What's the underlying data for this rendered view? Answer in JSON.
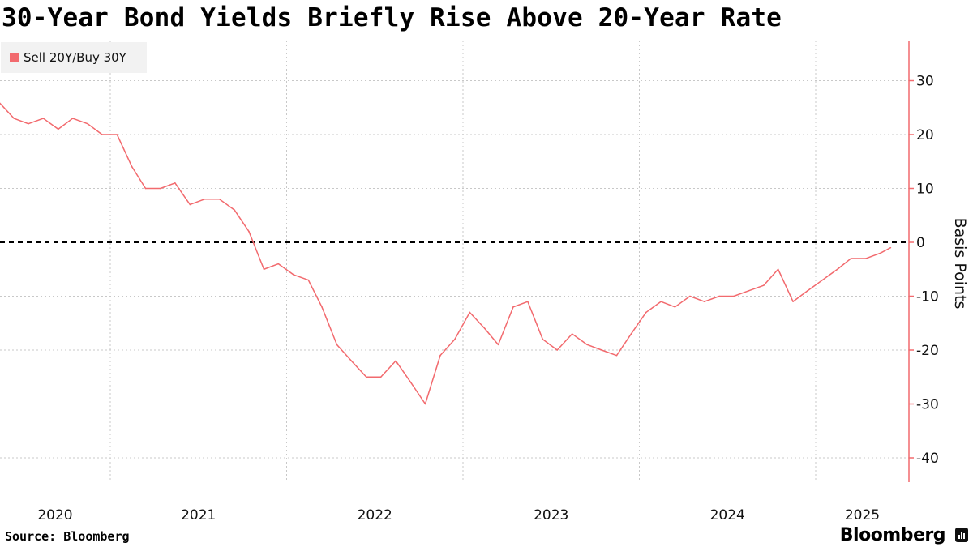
{
  "title": "30-Year Bond Yields Briefly Rise Above 20-Year Rate",
  "source": "Source: Bloomberg",
  "brand": "Bloomberg",
  "colors": {
    "series": "#f26a6e",
    "axis": "#f26a6e",
    "zero_line": "#000000",
    "grid": "#c8c8c8",
    "legend_bg": "#f2f2f2"
  },
  "chart_data": {
    "type": "line",
    "title": "30-Year Bond Yields Briefly Rise Above 20-Year Rate",
    "ylabel": "Basis Points",
    "ylim": [
      -45,
      37
    ],
    "yticks": [
      30,
      20,
      10,
      0,
      -10,
      -20,
      -30,
      -40
    ],
    "xtick_labels": [
      "2020",
      "2021",
      "2022",
      "2023",
      "2024",
      "2025"
    ],
    "grid": true,
    "legend_position": "top-left",
    "reference_line": {
      "y": 0,
      "style": "dashed"
    },
    "series": [
      {
        "name": "Sell 20Y/Buy 30Y",
        "x": [
          "2020-05-15",
          "2020-06-15",
          "2020-07-15",
          "2020-08-15",
          "2020-09-15",
          "2020-10-15",
          "2020-11-15",
          "2020-12-15",
          "2021-01-15",
          "2021-02-15",
          "2021-03-15",
          "2021-04-15",
          "2021-05-15",
          "2021-06-15",
          "2021-07-15",
          "2021-08-15",
          "2021-09-15",
          "2021-10-15",
          "2021-11-15",
          "2021-12-15",
          "2022-01-15",
          "2022-02-15",
          "2022-03-15",
          "2022-04-15",
          "2022-05-15",
          "2022-06-15",
          "2022-07-15",
          "2022-08-15",
          "2022-09-15",
          "2022-10-15",
          "2022-11-15",
          "2022-12-15",
          "2023-01-15",
          "2023-02-15",
          "2023-03-15",
          "2023-04-15",
          "2023-05-15",
          "2023-06-15",
          "2023-07-15",
          "2023-08-15",
          "2023-09-15",
          "2023-10-15",
          "2023-11-15",
          "2023-12-15",
          "2024-01-15",
          "2024-02-15",
          "2024-03-15",
          "2024-04-15",
          "2024-05-15",
          "2024-06-15",
          "2024-07-15",
          "2024-08-15",
          "2024-09-15",
          "2024-10-15",
          "2024-11-15",
          "2024-12-15",
          "2025-01-15",
          "2025-02-15",
          "2025-03-15",
          "2025-04-15",
          "2025-05-15",
          "2025-06-05"
        ],
        "values": [
          26,
          23,
          22,
          23,
          21,
          23,
          22,
          20,
          20,
          14,
          10,
          10,
          11,
          7,
          8,
          8,
          6,
          2,
          -5,
          -4,
          -6,
          -7,
          -12,
          -19,
          -22,
          -25,
          -25,
          -22,
          -26,
          -30,
          -21,
          -18,
          -13,
          -16,
          -19,
          -12,
          -11,
          -18,
          -20,
          -17,
          -19,
          -20,
          -21,
          -17,
          -13,
          -11,
          -12,
          -10,
          -11,
          -10,
          -10,
          -9,
          -8,
          -5,
          -11,
          -9,
          -7,
          -5,
          -3,
          -3,
          -2,
          -1
        ]
      }
    ]
  }
}
